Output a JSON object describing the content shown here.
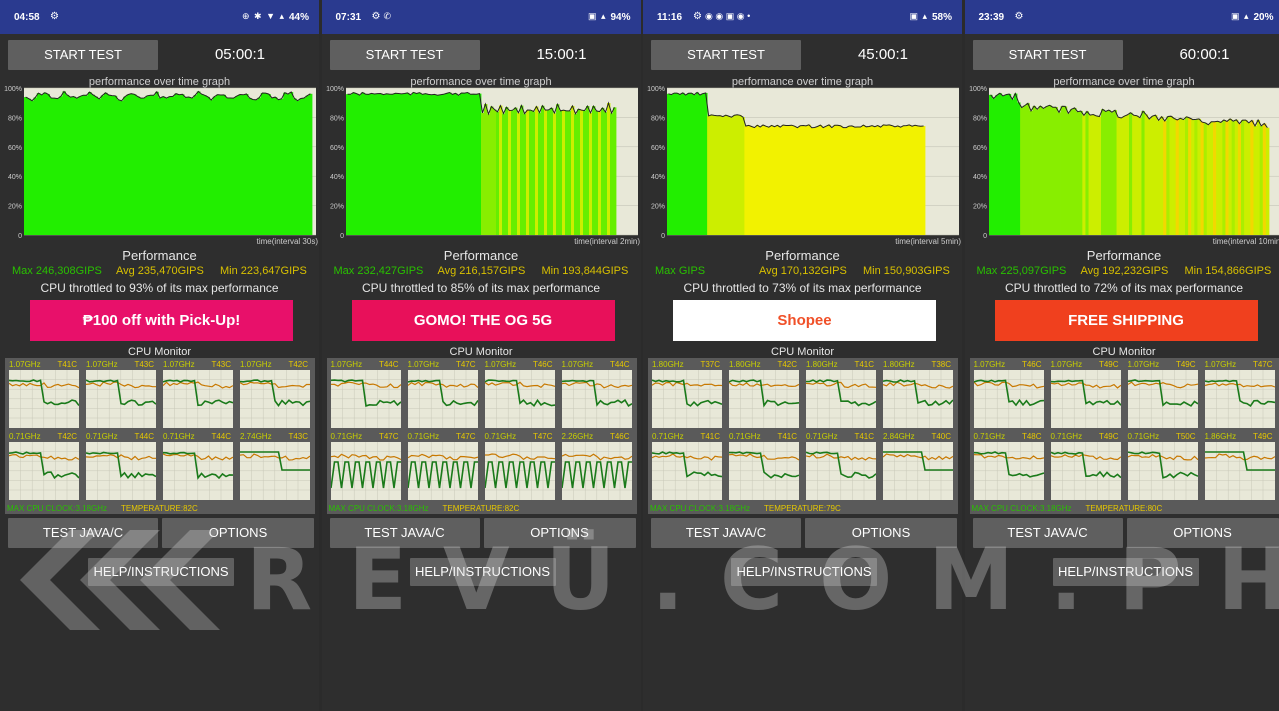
{
  "panels": [
    {
      "status": {
        "time": "04:58",
        "extra": "",
        "icons": "⊕ ✱ ▼ ▴",
        "battery": "44%"
      },
      "start_label": "START TEST",
      "duration": "05:00:1",
      "graph_title": "performance over time graph",
      "y_labels": [
        "100%",
        "80%",
        "60%",
        "40%",
        "20%",
        "0"
      ],
      "x_label": "time(interval 30s)",
      "perf_label": "Performance",
      "max": "Max 246,308GIPS",
      "avg": "Avg 235,470GIPS",
      "min": "Min 223,647GIPS",
      "throttle": "CPU throttled to 93% of its max performance",
      "ad": {
        "text": "₱100 off with Pick-Up!",
        "bg": "#e8106a"
      },
      "cpu_title": "CPU Monitor",
      "cores": [
        {
          "freq": "1.07GHz",
          "temp": "T41C"
        },
        {
          "freq": "1.07GHz",
          "temp": "T43C"
        },
        {
          "freq": "1.07GHz",
          "temp": "T43C"
        },
        {
          "freq": "1.07GHz",
          "temp": "T42C"
        },
        {
          "freq": "0.71GHz",
          "temp": "T42C"
        },
        {
          "freq": "0.71GHz",
          "temp": "T44C"
        },
        {
          "freq": "0.71GHz",
          "temp": "T44C"
        },
        {
          "freq": "2.74GHz",
          "temp": "T43C"
        }
      ],
      "max_clock": "MAX CPU CLOCK:3.18GHz",
      "temp_max": "TEMPERATURE:82C",
      "test_label": "TEST JAVA/C",
      "options_label": "OPTIONS",
      "help_label": "HELP/INSTRUCTIONS",
      "trend": "flat"
    },
    {
      "status": {
        "time": "07:31",
        "extra": "✆",
        "icons": "▣ ▴",
        "battery": "94%"
      },
      "start_label": "START TEST",
      "duration": "15:00:1",
      "graph_title": "performance over time graph",
      "y_labels": [
        "100%",
        "80%",
        "60%",
        "40%",
        "20%",
        "0"
      ],
      "x_label": "time(interval 2min)",
      "perf_label": "Performance",
      "max": "Max 232,427GIPS",
      "avg": "Avg 216,157GIPS",
      "min": "Min 193,844GIPS",
      "throttle": "CPU throttled to 85% of its max performance",
      "ad": {
        "text": "GOMO! THE OG 5G",
        "bg": "#e8105a"
      },
      "cpu_title": "CPU Monitor",
      "cores": [
        {
          "freq": "1.07GHz",
          "temp": "T44C"
        },
        {
          "freq": "1.07GHz",
          "temp": "T47C"
        },
        {
          "freq": "1.07GHz",
          "temp": "T46C"
        },
        {
          "freq": "1.07GHz",
          "temp": "T44C"
        },
        {
          "freq": "0.71GHz",
          "temp": "T47C"
        },
        {
          "freq": "0.71GHz",
          "temp": "T47C"
        },
        {
          "freq": "0.71GHz",
          "temp": "T47C"
        },
        {
          "freq": "2.26GHz",
          "temp": "T46C"
        }
      ],
      "max_clock": "MAX CPU CLOCK:3.18GHz",
      "temp_max": "TEMPERATURE:82C",
      "test_label": "TEST JAVA/C",
      "options_label": "OPTIONS",
      "help_label": "HELP/INSTRUCTIONS",
      "trend": "wavy"
    },
    {
      "status": {
        "time": "11:16",
        "extra": "◉ ◉ ▣ ◉ •",
        "icons": "▣ ▴",
        "battery": "58%"
      },
      "start_label": "START TEST",
      "duration": "45:00:1",
      "graph_title": "performance over time graph",
      "y_labels": [
        "100%",
        "80%",
        "60%",
        "40%",
        "20%",
        "0"
      ],
      "x_label": "time(interval 5min)",
      "perf_label": "Performance",
      "max": "Max GIPS",
      "avg": "Avg 170,132GIPS",
      "min": "Min 150,903GIPS",
      "throttle": "CPU throttled to 73% of its max performance",
      "ad": {
        "text": "Shopee",
        "bg": "#ffffff"
      },
      "cpu_title": "CPU Monitor",
      "cores": [
        {
          "freq": "1.80GHz",
          "temp": "T37C"
        },
        {
          "freq": "1.80GHz",
          "temp": "T42C"
        },
        {
          "freq": "1.80GHz",
          "temp": "T41C"
        },
        {
          "freq": "1.80GHz",
          "temp": "T38C"
        },
        {
          "freq": "0.71GHz",
          "temp": "T41C"
        },
        {
          "freq": "0.71GHz",
          "temp": "T41C"
        },
        {
          "freq": "0.71GHz",
          "temp": "T41C"
        },
        {
          "freq": "2.84GHz",
          "temp": "T40C"
        }
      ],
      "max_clock": "MAX CPU CLOCK:3.18GHz",
      "temp_max": "TEMPERATURE:79C",
      "test_label": "TEST JAVA/C",
      "options_label": "OPTIONS",
      "help_label": "HELP/INSTRUCTIONS",
      "trend": "drop"
    },
    {
      "status": {
        "time": "23:39",
        "extra": "",
        "icons": "▣ ▴",
        "battery": "20%"
      },
      "start_label": "START TEST",
      "duration": "60:00:1",
      "graph_title": "performance over time graph",
      "y_labels": [
        "100%",
        "80%",
        "60%",
        "40%",
        "20%",
        "0"
      ],
      "x_label": "time(interval 10min)",
      "perf_label": "Performance",
      "max": "Max 225,097GIPS",
      "avg": "Avg 192,232GIPS",
      "min": "Min 154,866GIPS",
      "throttle": "CPU throttled to 72% of its max performance",
      "ad": {
        "text": "FREE SHIPPING",
        "bg": "#f0401e"
      },
      "cpu_title": "CPU Monitor",
      "cores": [
        {
          "freq": "1.07GHz",
          "temp": "T46C"
        },
        {
          "freq": "1.07GHz",
          "temp": "T49C"
        },
        {
          "freq": "1.07GHz",
          "temp": "T49C"
        },
        {
          "freq": "1.07GHz",
          "temp": "T47C"
        },
        {
          "freq": "0.71GHz",
          "temp": "T48C"
        },
        {
          "freq": "0.71GHz",
          "temp": "T49C"
        },
        {
          "freq": "0.71GHz",
          "temp": "T50C"
        },
        {
          "freq": "1.86GHz",
          "temp": "T49C"
        }
      ],
      "max_clock": "MAX CPU CLOCK:3.18GHz",
      "temp_max": "TEMPERATURE:80C",
      "test_label": "TEST JAVA/C",
      "options_label": "OPTIONS",
      "help_label": "HELP/INSTRUCTIONS",
      "trend": "decline"
    }
  ],
  "watermark": "REVÜ.COM.PH",
  "colors": {
    "statusbar": "#2a3a8f",
    "button": "#5f5f5f",
    "green": "#29c000",
    "yellow": "#d8c000"
  }
}
